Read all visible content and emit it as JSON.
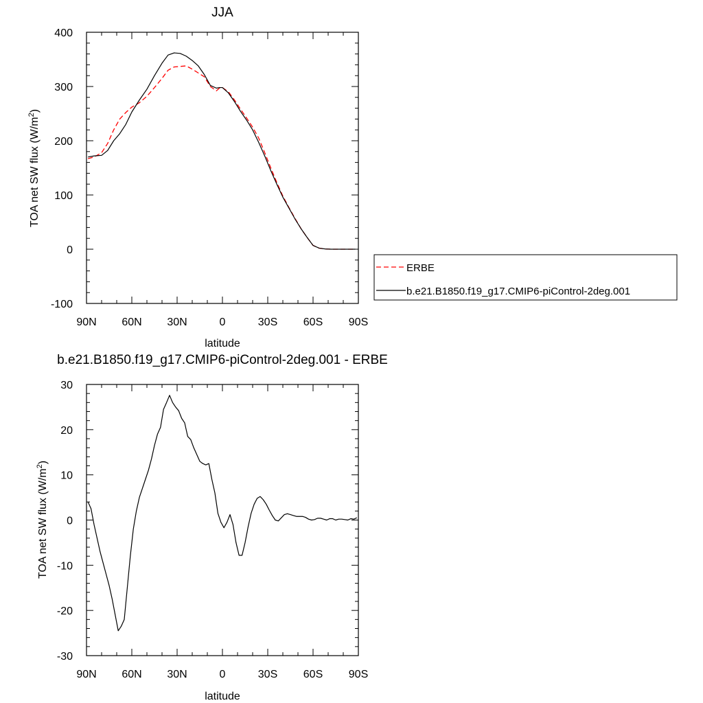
{
  "chart_data": [
    {
      "type": "line",
      "title": "JJA",
      "xlabel": "latitude",
      "ylabel": "TOA net SW flux (W/m",
      "ylabel_sup": "2",
      "ylabel_tail": ")",
      "xlim": [
        90,
        -90
      ],
      "ylim": [
        -100,
        400
      ],
      "x_ticks": [
        90,
        60,
        30,
        0,
        -30,
        -60,
        -90
      ],
      "x_tick_labels": [
        "90N",
        "60N",
        "30N",
        "0",
        "30S",
        "60S",
        "90S"
      ],
      "y_ticks": [
        -100,
        0,
        100,
        200,
        300,
        400
      ],
      "y_tick_labels": [
        "-100",
        "0",
        "100",
        "200",
        "300",
        "400"
      ],
      "grid": false,
      "legend_placement": "right",
      "series": [
        {
          "name": "ERBE",
          "color": "#ff0000",
          "dash": "dashed",
          "x": [
            89,
            85,
            80,
            76,
            72,
            68,
            64,
            60,
            55,
            50,
            45,
            40,
            36,
            32,
            28,
            24,
            20,
            16,
            12,
            8,
            4,
            2,
            0,
            -4,
            -8,
            -12,
            -16,
            -20,
            -24,
            -28,
            -32,
            -36,
            -40,
            -44,
            -48,
            -52,
            -56,
            -60,
            -64,
            -68,
            -72,
            -76,
            -80,
            -84,
            -88
          ],
          "y": [
            167,
            170,
            178,
            195,
            220,
            240,
            252,
            262,
            270,
            282,
            298,
            315,
            330,
            336,
            337,
            338,
            332,
            325,
            318,
            300,
            292,
            297,
            298,
            290,
            275,
            258,
            242,
            225,
            205,
            178,
            150,
            123,
            98,
            77,
            57,
            38,
            22,
            7,
            2,
            0.5,
            0,
            0,
            0,
            0,
            0
          ]
        },
        {
          "name": "b.e21.B1850.f19_g17.CMIP6-piControl-2deg.001",
          "color": "#000000",
          "dash": "solid",
          "x": [
            89,
            85,
            80,
            76,
            72,
            68,
            64,
            60,
            55,
            50,
            45,
            40,
            36,
            32,
            28,
            24,
            20,
            16,
            12,
            8,
            4,
            2,
            0,
            -4,
            -8,
            -12,
            -16,
            -20,
            -24,
            -28,
            -32,
            -36,
            -40,
            -44,
            -48,
            -52,
            -56,
            -60,
            -64,
            -68,
            -72,
            -76,
            -80,
            -84,
            -88
          ],
          "y": [
            170,
            172,
            173,
            182,
            200,
            213,
            230,
            253,
            275,
            295,
            320,
            343,
            358,
            362,
            361,
            356,
            348,
            338,
            322,
            302,
            297,
            298,
            298,
            288,
            272,
            254,
            238,
            220,
            197,
            172,
            145,
            120,
            96,
            76,
            56,
            38,
            22,
            7,
            2,
            0.5,
            0,
            0,
            0,
            0,
            0
          ]
        }
      ]
    },
    {
      "type": "line",
      "title": "b.e21.B1850.f19_g17.CMIP6-piControl-2deg.001 - ERBE",
      "xlabel": "latitude",
      "ylabel": "TOA net SW flux (W/m",
      "ylabel_sup": "2",
      "ylabel_tail": ")",
      "xlim": [
        90,
        -90
      ],
      "ylim": [
        -30,
        30
      ],
      "x_ticks": [
        90,
        60,
        30,
        0,
        -30,
        -60,
        -90
      ],
      "x_tick_labels": [
        "90N",
        "60N",
        "30N",
        "0",
        "30S",
        "60S",
        "90S"
      ],
      "y_ticks": [
        -30,
        -20,
        -10,
        0,
        10,
        20,
        30
      ],
      "y_tick_labels": [
        "-30",
        "-20",
        "-10",
        "0",
        "10",
        "20",
        "30"
      ],
      "grid": false,
      "series": [
        {
          "color": "#000000",
          "dash": "solid",
          "x": [
            89,
            87,
            85,
            83,
            81,
            79,
            77,
            75,
            73,
            71,
            69,
            67,
            65,
            63,
            61,
            59,
            57,
            55,
            53,
            51,
            49,
            47,
            45,
            43,
            41,
            39,
            37,
            35,
            33,
            31,
            29,
            27,
            25,
            23,
            21,
            19,
            17,
            15,
            13,
            11,
            9,
            7,
            5,
            3,
            1,
            -1,
            -3,
            -5,
            -7,
            -9,
            -11,
            -13,
            -15,
            -17,
            -19,
            -21,
            -23,
            -25,
            -27,
            -29,
            -31,
            -33,
            -35,
            -37,
            -39,
            -41,
            -43,
            -45,
            -47,
            -49,
            -51,
            -53,
            -55,
            -57,
            -59,
            -61,
            -63,
            -65,
            -67,
            -69,
            -71,
            -73,
            -75,
            -77,
            -79,
            -81,
            -83,
            -85,
            -87,
            -89
          ],
          "y": [
            4,
            2.5,
            -1,
            -4,
            -7,
            -9.5,
            -12,
            -14.5,
            -17.5,
            -21,
            -24.5,
            -23.5,
            -22,
            -15,
            -8,
            -2,
            2,
            5,
            7,
            9,
            11,
            13.5,
            16.5,
            19,
            20.5,
            24.5,
            26,
            27.6,
            26,
            25,
            24.2,
            22.5,
            21.5,
            18.5,
            17.8,
            16,
            14.5,
            13,
            12.5,
            12.2,
            12.5,
            9,
            6,
            1.5,
            -0.5,
            -1.7,
            -0.5,
            1.2,
            -1,
            -5,
            -7.8,
            -7.8,
            -5,
            -1.5,
            1.5,
            3.5,
            4.8,
            5.2,
            4.5,
            3.5,
            2.2,
            1,
            0,
            -0.2,
            0.5,
            1.2,
            1.4,
            1.2,
            1,
            0.8,
            0.8,
            0.8,
            0.6,
            0.2,
            0,
            0.1,
            0.4,
            0.4,
            0.2,
            0,
            0.3,
            0.3,
            0,
            0.2,
            0.2,
            0.1,
            0,
            0.3,
            0.2,
            0.5
          ]
        }
      ]
    }
  ]
}
